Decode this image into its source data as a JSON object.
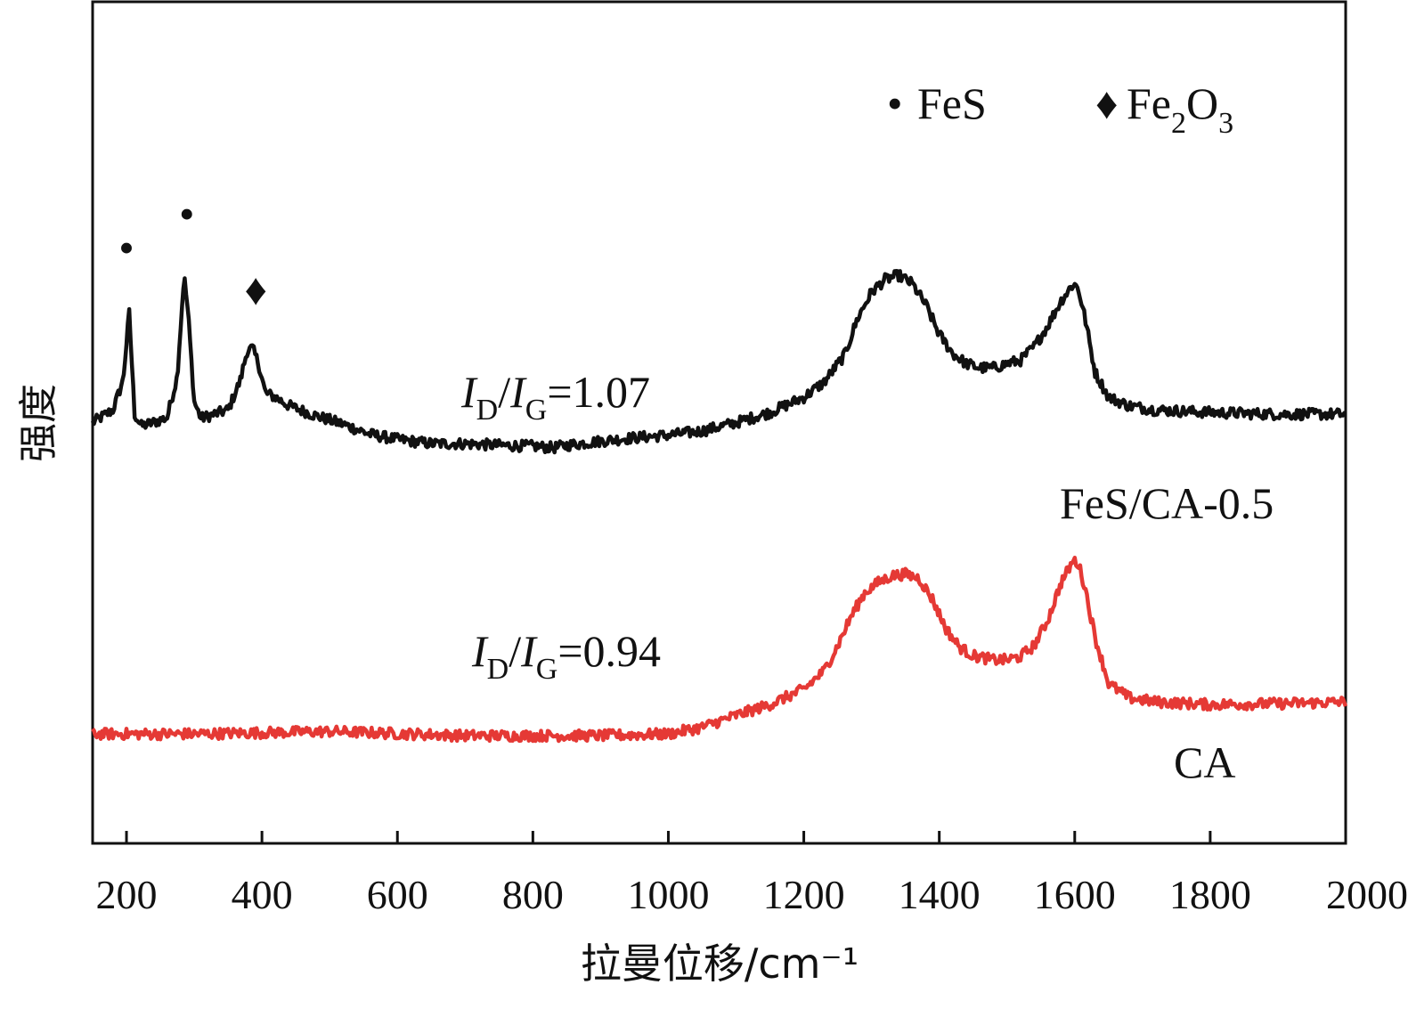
{
  "chart_data": {
    "type": "line",
    "title": "",
    "xlabel": "拉曼位移/cm⁻¹",
    "ylabel": "强度",
    "xlim": [
      150,
      2000
    ],
    "ylim": [
      0,
      100
    ],
    "xticks": [
      "200",
      "400",
      "600",
      "800",
      "1000",
      "1200",
      "1400",
      "1600",
      "1800",
      "2000"
    ],
    "xtick_values": [
      200,
      400,
      600,
      800,
      1000,
      1200,
      1400,
      1600,
      1800,
      2000
    ],
    "legend": {
      "position": "top-right",
      "entries": [
        {
          "marker": "•",
          "label": "FeS"
        },
        {
          "marker": "♦",
          "label": "Fe2O3"
        }
      ]
    },
    "series": [
      {
        "name": "FeS/CA-0.5",
        "label": "FeS/CA-0.5",
        "color": "#111111",
        "ratio_label": "ID/IG=1.07",
        "x": [
          150,
          180,
          195,
          204,
          212,
          222,
          240,
          260,
          275,
          285,
          291,
          300,
          310,
          330,
          350,
          368,
          378,
          386,
          395,
          405,
          420,
          440,
          480,
          520,
          560,
          600,
          650,
          700,
          750,
          800,
          830,
          850,
          900,
          950,
          1000,
          1050,
          1100,
          1150,
          1200,
          1230,
          1260,
          1280,
          1300,
          1320,
          1340,
          1360,
          1380,
          1400,
          1420,
          1440,
          1460,
          1480,
          1500,
          1520,
          1540,
          1560,
          1580,
          1598,
          1605,
          1615,
          1630,
          1650,
          1680,
          1720,
          1800,
          1900,
          2000
        ],
        "values": [
          50.0,
          51.5,
          55.0,
          63.0,
          51.0,
          49.6,
          50.0,
          50.6,
          55.5,
          67.5,
          63.0,
          52.5,
          50.5,
          51.0,
          51.5,
          55.0,
          58.5,
          58.8,
          57.0,
          53.5,
          53.0,
          52.0,
          50.8,
          49.8,
          48.6,
          48.0,
          47.5,
          47.5,
          47.3,
          47.2,
          47.0,
          47.3,
          47.8,
          48.2,
          48.5,
          49.0,
          50.0,
          51.2,
          53.0,
          54.8,
          58.0,
          62.5,
          65.5,
          67.0,
          67.5,
          66.5,
          64.0,
          60.5,
          58.2,
          57.0,
          56.5,
          56.5,
          57.0,
          57.4,
          59.0,
          61.5,
          64.5,
          66.5,
          66.0,
          62.5,
          56.0,
          53.0,
          52.0,
          51.5,
          51.2,
          51.0,
          51.0
        ]
      },
      {
        "name": "CA",
        "label": "CA",
        "color": "#e53935",
        "ratio_label": "ID/IG=0.94",
        "x": [
          150,
          300,
          500,
          700,
          900,
          1000,
          1050,
          1100,
          1150,
          1200,
          1230,
          1250,
          1270,
          1290,
          1310,
          1330,
          1350,
          1370,
          1390,
          1410,
          1430,
          1450,
          1480,
          1500,
          1520,
          1540,
          1560,
          1580,
          1598,
          1605,
          1615,
          1630,
          1650,
          1680,
          1720,
          1800,
          1900,
          2000
        ],
        "values": [
          13.0,
          13.0,
          13.3,
          12.8,
          12.8,
          13.0,
          13.8,
          15.2,
          16.5,
          18.3,
          20.5,
          23.5,
          27.0,
          29.8,
          31.0,
          31.8,
          32.0,
          31.5,
          29.0,
          25.5,
          23.3,
          22.3,
          21.8,
          21.8,
          22.2,
          23.5,
          26.5,
          31.0,
          33.6,
          33.3,
          30.5,
          24.5,
          19.0,
          17.3,
          16.8,
          16.5,
          16.6,
          16.8
        ]
      }
    ],
    "annotations": [
      {
        "text": "•",
        "meaning": "FeS",
        "x": 200,
        "y": 69
      },
      {
        "text": "•",
        "meaning": "FeS",
        "x": 289,
        "y": 73
      },
      {
        "text": "♦",
        "meaning": "Fe2O3",
        "x": 391,
        "y": 64
      }
    ]
  }
}
